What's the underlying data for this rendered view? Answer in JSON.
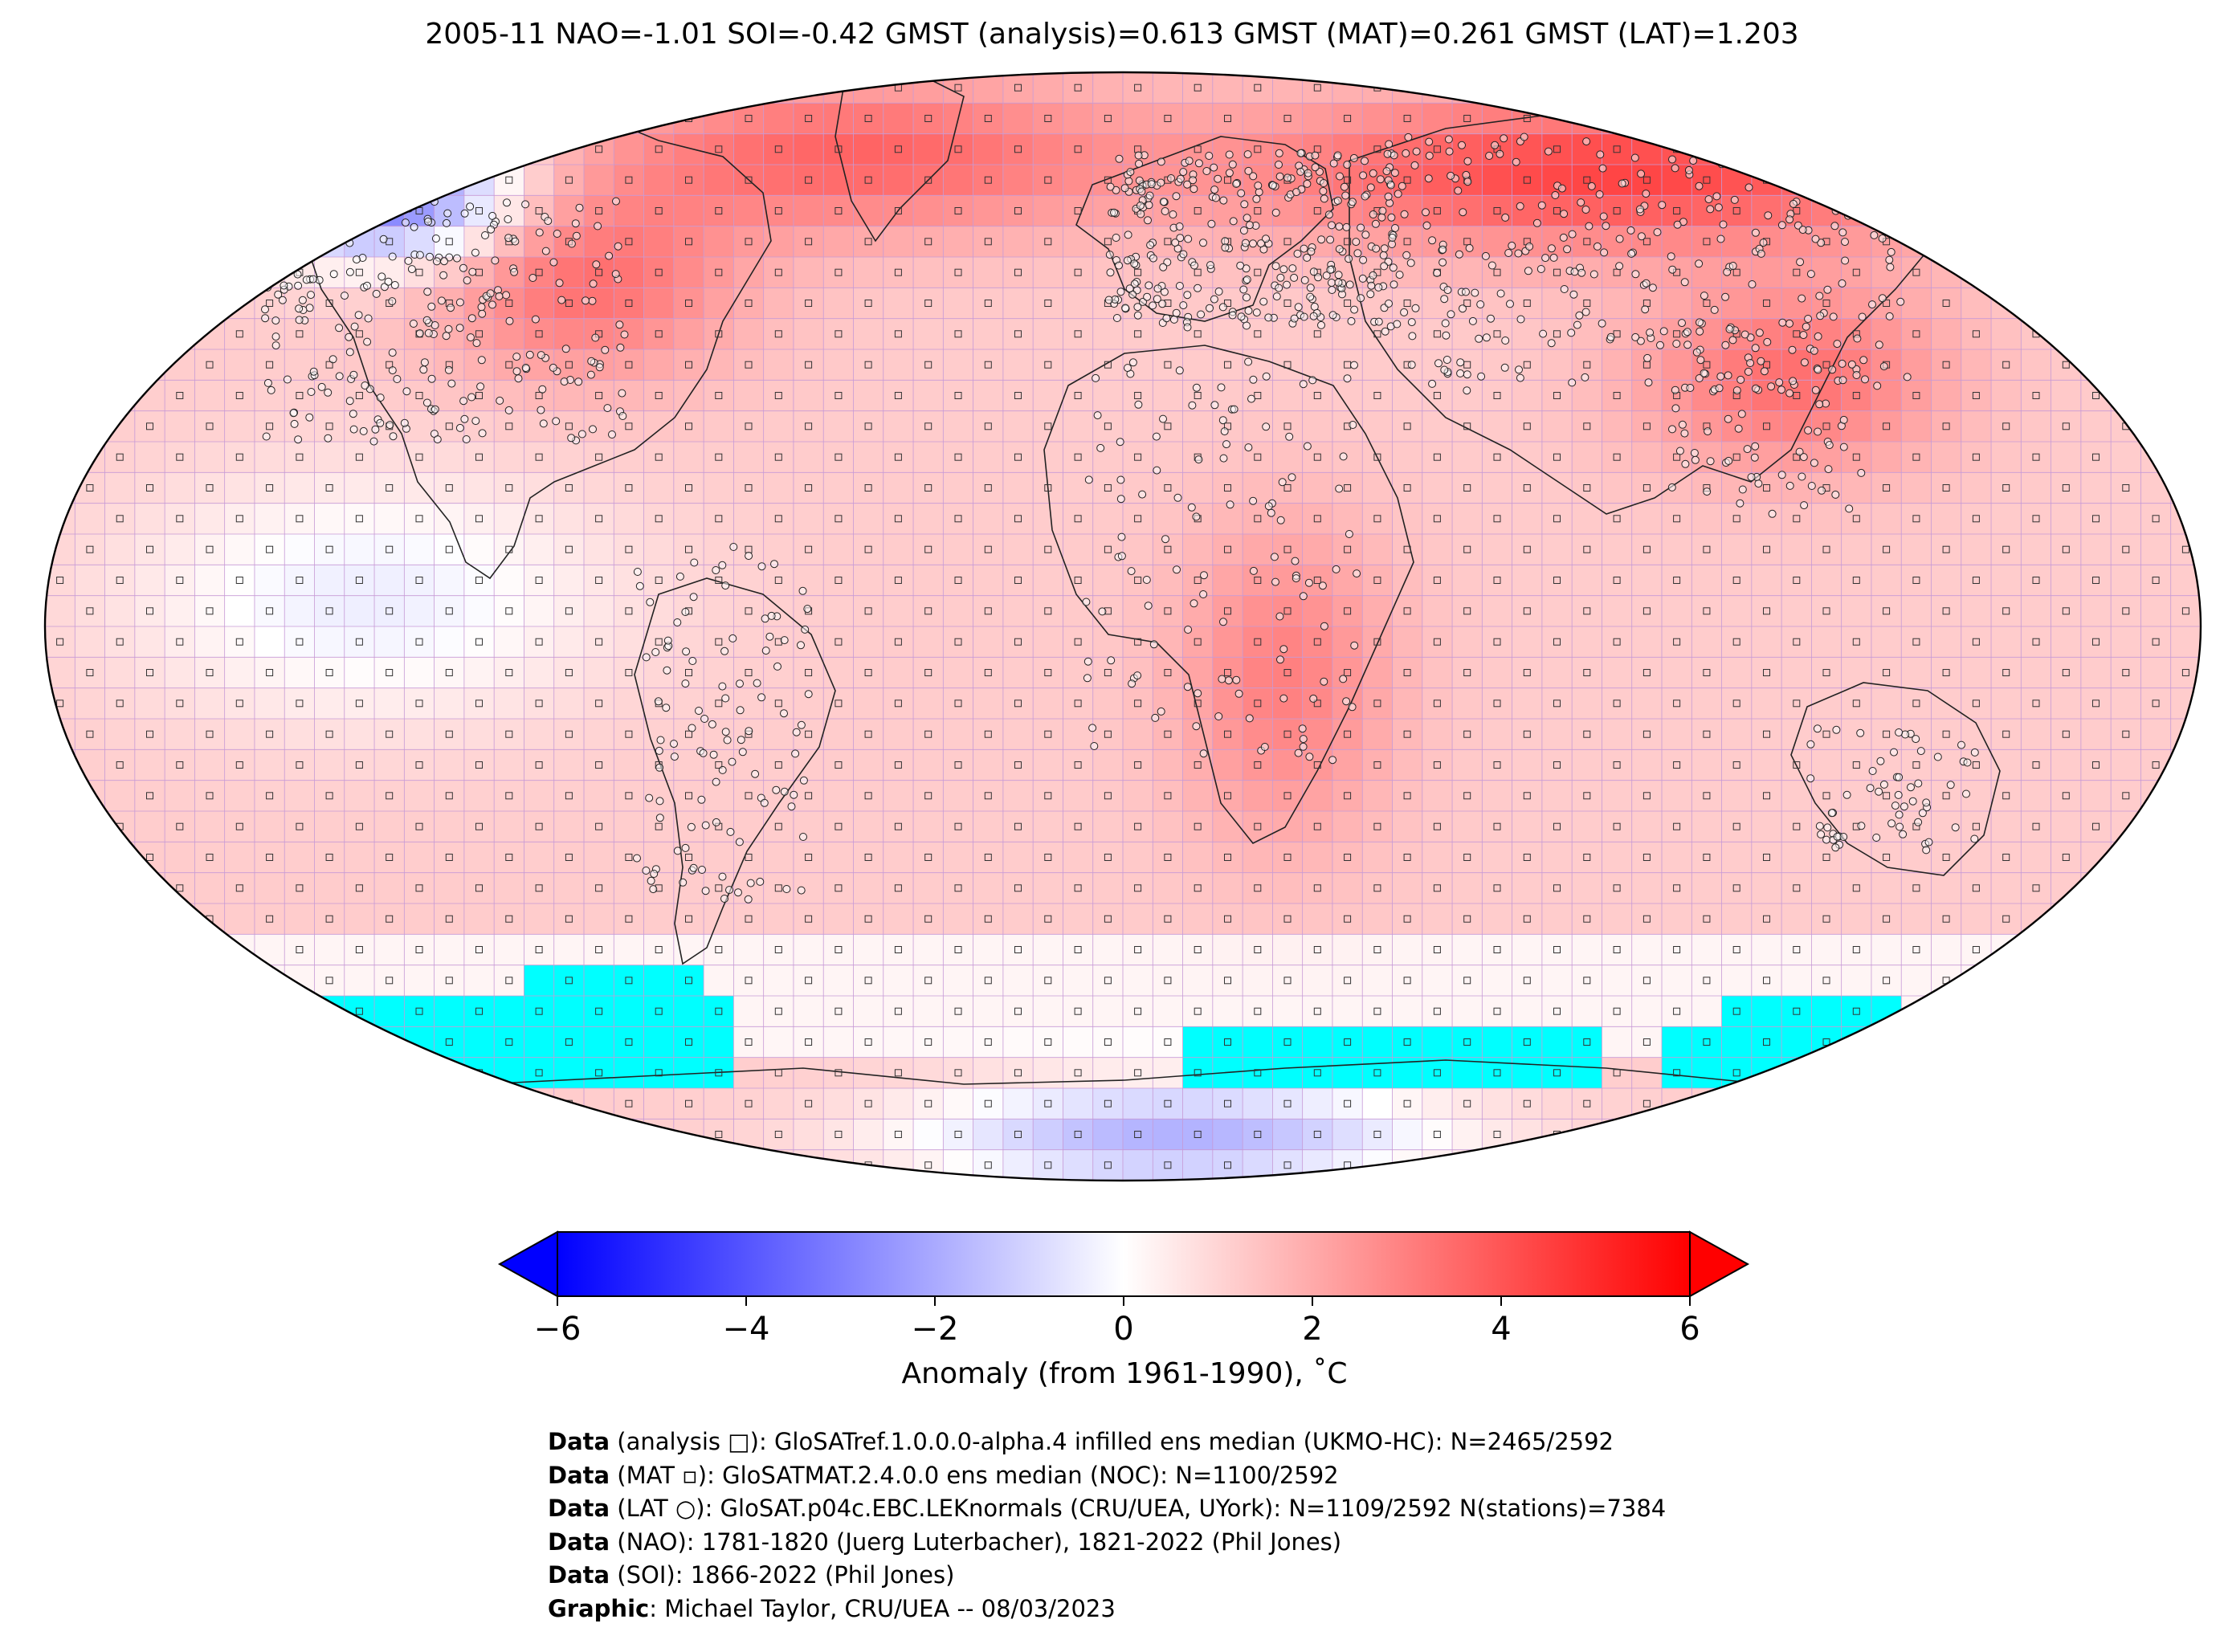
{
  "title": "2005-11 NAO=-1.01 SOI=-0.42 GMST (analysis)=0.613 GMST (MAT)=0.261 GMST (LAT)=1.203",
  "colorbar": {
    "label": "Anomaly (from 1961-1990), ˚C",
    "ticks": [
      "−6",
      "−4",
      "−2",
      "0",
      "2",
      "4",
      "6"
    ],
    "range": [
      -6,
      6
    ],
    "colors": {
      "low": "#0000ff",
      "mid": "#ffffff",
      "high": "#ff0000",
      "missing": "#00ffff"
    }
  },
  "credits": [
    {
      "bold": "Data",
      "text": " (analysis □): GloSATref.1.0.0.0-alpha.4 infilled ens median (UKMO-HC): N=2465/2592"
    },
    {
      "bold": "Data",
      "text": " (MAT ▫): GloSATMAT.2.4.0.0 ens median (NOC): N=1100/2592"
    },
    {
      "bold": "Data",
      "text": " (LAT ○): GloSAT.p04c.EBC.LEKnormals (CRU/UEA, UYork): N=1109/2592 N(stations)=7384"
    },
    {
      "bold": "Data",
      "text": " (NAO): 1781-1820 (Juerg Luterbacher), 1821-2022 (Phil Jones)"
    },
    {
      "bold": "Data",
      "text": " (SOI): 1866-2022 (Phil Jones)"
    },
    {
      "bold": "Graphic",
      "text": ": Michael Taylor, CRU/UEA -- 08/03/2023"
    }
  ],
  "map": {
    "projection": "Robinson",
    "grid": "5x5 degree",
    "icons": [
      "analysis-square-marker",
      "mat-dot-marker",
      "lat-circle-marker"
    ]
  }
}
